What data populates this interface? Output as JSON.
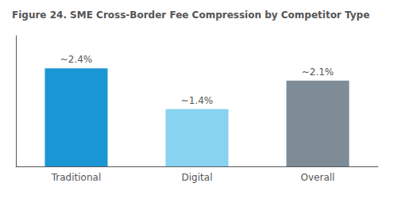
{
  "chart_data": {
    "type": "bar",
    "title": "Figure 24. SME Cross-Border Fee Compression by Competitor Type",
    "categories": [
      "Traditional",
      "Digital",
      "Overall"
    ],
    "values": [
      2.4,
      1.4,
      2.1
    ],
    "value_labels": [
      "~2.4%",
      "~1.4%",
      "~2.1%"
    ],
    "data_labels": true,
    "colors": [
      "#1a96d4",
      "#87d3f0",
      "#7d8c96"
    ],
    "ylim": [
      0,
      3.2
    ],
    "tick_labels": "x",
    "grid": false
  }
}
